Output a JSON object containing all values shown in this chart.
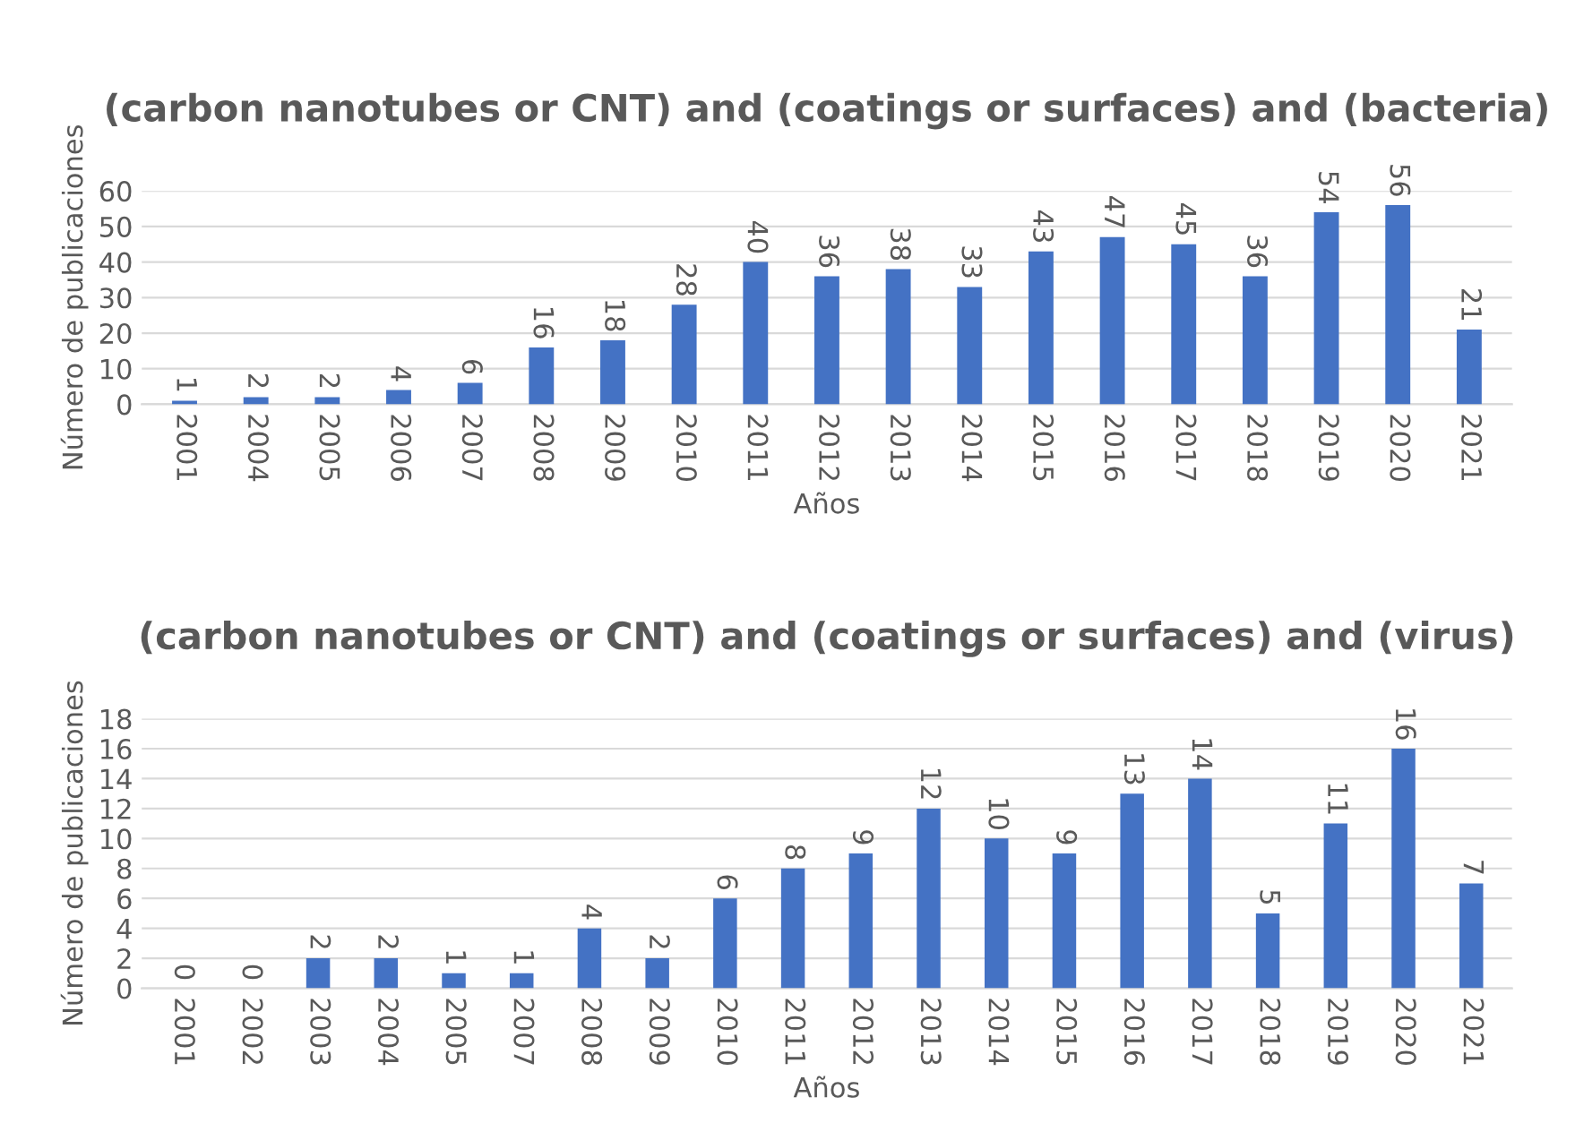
{
  "chart_data": [
    {
      "type": "bar",
      "title": "(carbon nanotubes or CNT) and (coatings or surfaces) and (bacteria)",
      "xlabel": "Años",
      "ylabel": "Número de publicaciones",
      "categories": [
        "2001",
        "2004",
        "2005",
        "2006",
        "2007",
        "2008",
        "2009",
        "2010",
        "2011",
        "2012",
        "2013",
        "2014",
        "2015",
        "2016",
        "2017",
        "2018",
        "2019",
        "2020",
        "2021"
      ],
      "values": [
        1,
        2,
        2,
        4,
        6,
        16,
        18,
        28,
        40,
        36,
        38,
        33,
        43,
        47,
        45,
        36,
        54,
        56,
        21
      ],
      "color": "#4472c4",
      "ylim": [
        0,
        60
      ],
      "yticks": [
        0,
        10,
        20,
        30,
        40,
        50,
        60
      ],
      "grid": "y",
      "data_labels": true
    },
    {
      "type": "bar",
      "title": "(carbon nanotubes or CNT) and (coatings or surfaces) and (virus)",
      "xlabel": "Años",
      "ylabel": "Número de publicaciones",
      "categories": [
        "2001",
        "2002",
        "2003",
        "2004",
        "2005",
        "2007",
        "2008",
        "2009",
        "2010",
        "2011",
        "2012",
        "2013",
        "2014",
        "2015",
        "2016",
        "2017",
        "2018",
        "2019",
        "2020",
        "2021"
      ],
      "values": [
        0,
        0,
        2,
        2,
        1,
        1,
        4,
        2,
        6,
        8,
        9,
        12,
        10,
        9,
        13,
        14,
        5,
        11,
        16,
        7
      ],
      "color": "#4472c4",
      "ylim": [
        0,
        18
      ],
      "yticks": [
        0,
        2,
        4,
        6,
        8,
        10,
        12,
        14,
        16,
        18
      ],
      "grid": "y",
      "data_labels": true
    }
  ]
}
